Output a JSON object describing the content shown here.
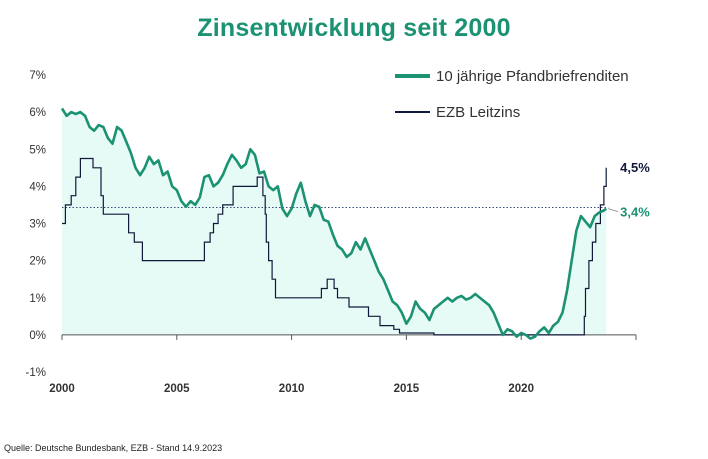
{
  "chart_data": {
    "type": "line",
    "title": "Zinsentwicklung seit 2000",
    "xlabel": "",
    "ylabel": "",
    "xlim": [
      2000,
      2025
    ],
    "ylim": [
      -1,
      7
    ],
    "y_ticks": [
      -1,
      0,
      1,
      2,
      3,
      4,
      5,
      6,
      7
    ],
    "y_tick_labels": [
      "-1%",
      "0%",
      "1%",
      "2%",
      "3%",
      "4%",
      "5%",
      "6%",
      "7%"
    ],
    "x_ticks": [
      2000,
      2005,
      2010,
      2015,
      2020
    ],
    "x_tick_labels": [
      "2000",
      "2005",
      "2010",
      "2015",
      "2020"
    ],
    "grid": false,
    "legend_position": "top-right",
    "reference_line": {
      "y": 3.43,
      "style": "dotted"
    },
    "series": [
      {
        "name": "10 jährige Pfandbriefrenditen",
        "color": "#1b9272",
        "fill": "#e6faf6",
        "end_label": "3,4%",
        "x": [
          2000.0,
          2000.2,
          2000.4,
          2000.6,
          2000.8,
          2001.0,
          2001.2,
          2001.4,
          2001.6,
          2001.8,
          2002.0,
          2002.2,
          2002.4,
          2002.6,
          2002.8,
          2003.0,
          2003.2,
          2003.4,
          2003.6,
          2003.8,
          2004.0,
          2004.2,
          2004.4,
          2004.6,
          2004.8,
          2005.0,
          2005.2,
          2005.4,
          2005.6,
          2005.8,
          2006.0,
          2006.2,
          2006.4,
          2006.6,
          2006.8,
          2007.0,
          2007.2,
          2007.4,
          2007.6,
          2007.8,
          2008.0,
          2008.2,
          2008.4,
          2008.6,
          2008.8,
          2009.0,
          2009.2,
          2009.4,
          2009.6,
          2009.8,
          2010.0,
          2010.2,
          2010.4,
          2010.6,
          2010.8,
          2011.0,
          2011.2,
          2011.4,
          2011.6,
          2011.8,
          2012.0,
          2012.2,
          2012.4,
          2012.6,
          2012.8,
          2013.0,
          2013.2,
          2013.4,
          2013.6,
          2013.8,
          2014.0,
          2014.2,
          2014.4,
          2014.6,
          2014.8,
          2015.0,
          2015.2,
          2015.4,
          2015.6,
          2015.8,
          2016.0,
          2016.2,
          2016.4,
          2016.6,
          2016.8,
          2017.0,
          2017.2,
          2017.4,
          2017.6,
          2017.8,
          2018.0,
          2018.2,
          2018.4,
          2018.6,
          2018.8,
          2019.0,
          2019.2,
          2019.4,
          2019.6,
          2019.8,
          2020.0,
          2020.2,
          2020.4,
          2020.6,
          2020.8,
          2021.0,
          2021.2,
          2021.4,
          2021.6,
          2021.8,
          2022.0,
          2022.2,
          2022.4,
          2022.6,
          2022.8,
          2023.0,
          2023.2,
          2023.4,
          2023.6,
          2023.7
        ],
        "y": [
          6.1,
          5.9,
          6.0,
          5.95,
          6.0,
          5.9,
          5.6,
          5.5,
          5.65,
          5.6,
          5.3,
          5.15,
          5.6,
          5.5,
          5.2,
          4.9,
          4.5,
          4.3,
          4.5,
          4.8,
          4.6,
          4.7,
          4.3,
          4.4,
          4.0,
          3.9,
          3.6,
          3.45,
          3.6,
          3.5,
          3.7,
          4.25,
          4.3,
          4.0,
          4.1,
          4.3,
          4.6,
          4.85,
          4.7,
          4.5,
          4.6,
          5.0,
          4.85,
          4.35,
          4.4,
          4.0,
          3.9,
          4.0,
          3.4,
          3.2,
          3.4,
          3.8,
          4.1,
          3.6,
          3.2,
          3.5,
          3.45,
          3.1,
          3.05,
          2.7,
          2.4,
          2.3,
          2.1,
          2.2,
          2.5,
          2.3,
          2.6,
          2.3,
          2.0,
          1.7,
          1.5,
          1.2,
          0.9,
          0.8,
          0.6,
          0.3,
          0.5,
          0.9,
          0.7,
          0.6,
          0.4,
          0.7,
          0.8,
          0.9,
          1.0,
          0.9,
          1.0,
          1.05,
          0.95,
          1.0,
          1.1,
          1.0,
          0.9,
          0.8,
          0.6,
          0.3,
          0.0,
          0.15,
          0.1,
          -0.05,
          0.05,
          0.0,
          -0.1,
          -0.05,
          0.1,
          0.2,
          0.05,
          0.25,
          0.35,
          0.6,
          1.2,
          2.0,
          2.8,
          3.2,
          3.05,
          2.9,
          3.2,
          3.3,
          3.35,
          3.4
        ]
      },
      {
        "name": "EZB Leitzins",
        "color": "#12183a",
        "end_label": "4,5%",
        "x": [
          2000.0,
          2000.15,
          2000.4,
          2000.6,
          2000.8,
          2001.35,
          2001.7,
          2001.8,
          2002.0,
          2002.9,
          2003.15,
          2003.5,
          2005.9,
          2006.2,
          2006.45,
          2006.6,
          2006.8,
          2007.0,
          2007.45,
          2008.5,
          2008.75,
          2008.85,
          2008.9,
          2009.0,
          2009.15,
          2009.3,
          2011.3,
          2011.55,
          2011.85,
          2012.0,
          2012.5,
          2013.35,
          2013.85,
          2014.45,
          2014.7,
          2016.2,
          2022.5,
          2022.75,
          2022.8,
          2022.95,
          2023.1,
          2023.25,
          2023.45,
          2023.6,
          2023.7
        ],
        "y": [
          3.0,
          3.5,
          3.75,
          4.25,
          4.75,
          4.5,
          3.75,
          3.25,
          3.25,
          2.75,
          2.5,
          2.0,
          2.0,
          2.5,
          2.75,
          3.0,
          3.25,
          3.5,
          4.0,
          4.25,
          3.75,
          3.25,
          2.5,
          2.0,
          1.5,
          1.0,
          1.25,
          1.5,
          1.25,
          1.0,
          0.75,
          0.5,
          0.25,
          0.15,
          0.05,
          0.0,
          0.0,
          0.5,
          1.25,
          2.0,
          2.5,
          3.0,
          3.5,
          4.0,
          4.5
        ]
      }
    ]
  },
  "source_note": "Quelle: Deutsche Bundesbank, EZB - Stand 14.9.2023"
}
